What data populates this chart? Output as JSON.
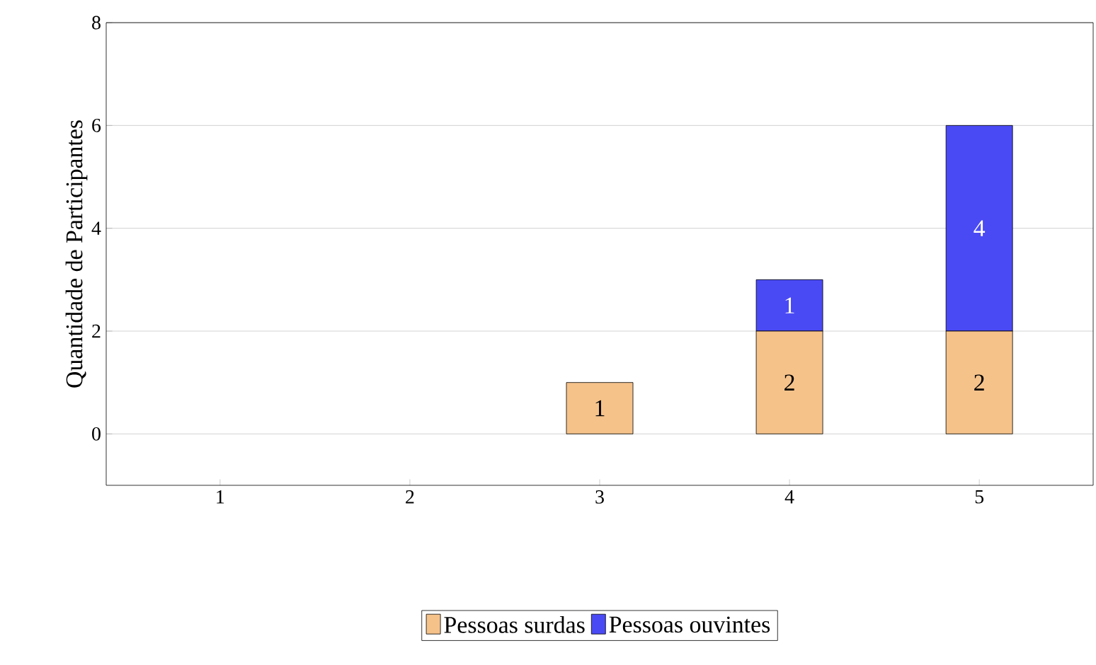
{
  "chart_data": {
    "type": "bar",
    "stacked": true,
    "ylabel": "Quantidade de Participantes",
    "x": [
      1,
      2,
      3,
      4,
      5
    ],
    "series": [
      {
        "name": "Pessoas surdas",
        "color": "#f5c28a",
        "values": [
          0,
          0,
          1,
          2,
          2
        ],
        "value_labels": [
          null,
          null,
          "1",
          "2",
          "2"
        ]
      },
      {
        "name": "Pessoas ouvintes",
        "color": "#4a4af5",
        "values": [
          0,
          0,
          0,
          1,
          4
        ],
        "value_labels": [
          null,
          null,
          null,
          "1",
          "4"
        ]
      }
    ],
    "xlim": [
      0.4,
      5.6
    ],
    "xticks": [
      1,
      2,
      3,
      4,
      5
    ],
    "ylim": [
      -1,
      8
    ],
    "yticks": [
      0,
      2,
      4,
      6,
      8
    ],
    "grid": "y",
    "legend": "bottom"
  }
}
